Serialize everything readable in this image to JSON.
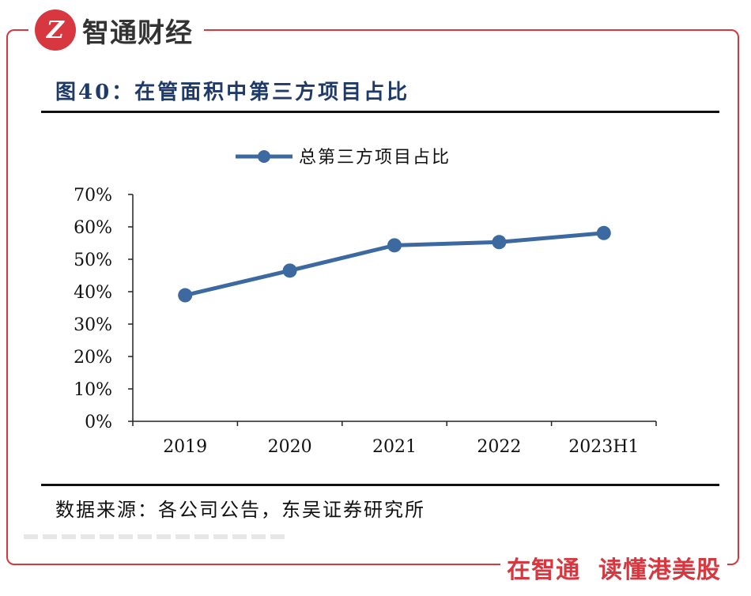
{
  "brand": {
    "logo_text": "Z",
    "name": "智通财经",
    "slogan": "在智通  读懂港美股"
  },
  "colors": {
    "accent": "#d7373f",
    "series": "#3c6aa0",
    "title": "#1f3a68"
  },
  "chart_title": "图40：在管面积中第三方项目占比",
  "source": "数据来源：各公司公告，东吴证券研究所",
  "chart_data": {
    "type": "line",
    "title": "图40：在管面积中第三方项目占比",
    "categories": [
      "2019",
      "2020",
      "2021",
      "2022",
      "2023H1"
    ],
    "series": [
      {
        "name": "总第三方项目占比",
        "values": [
          38.9,
          46.5,
          54.3,
          55.3,
          58.1
        ]
      }
    ],
    "ylim": [
      0,
      70
    ],
    "yticks": [
      0,
      10,
      20,
      30,
      40,
      50,
      60,
      70
    ],
    "ytick_labels": [
      "0%",
      "10%",
      "20%",
      "30%",
      "40%",
      "50%",
      "60%",
      "70%"
    ],
    "xlabel": "",
    "ylabel": "",
    "legend": "top-center",
    "grid": false
  }
}
